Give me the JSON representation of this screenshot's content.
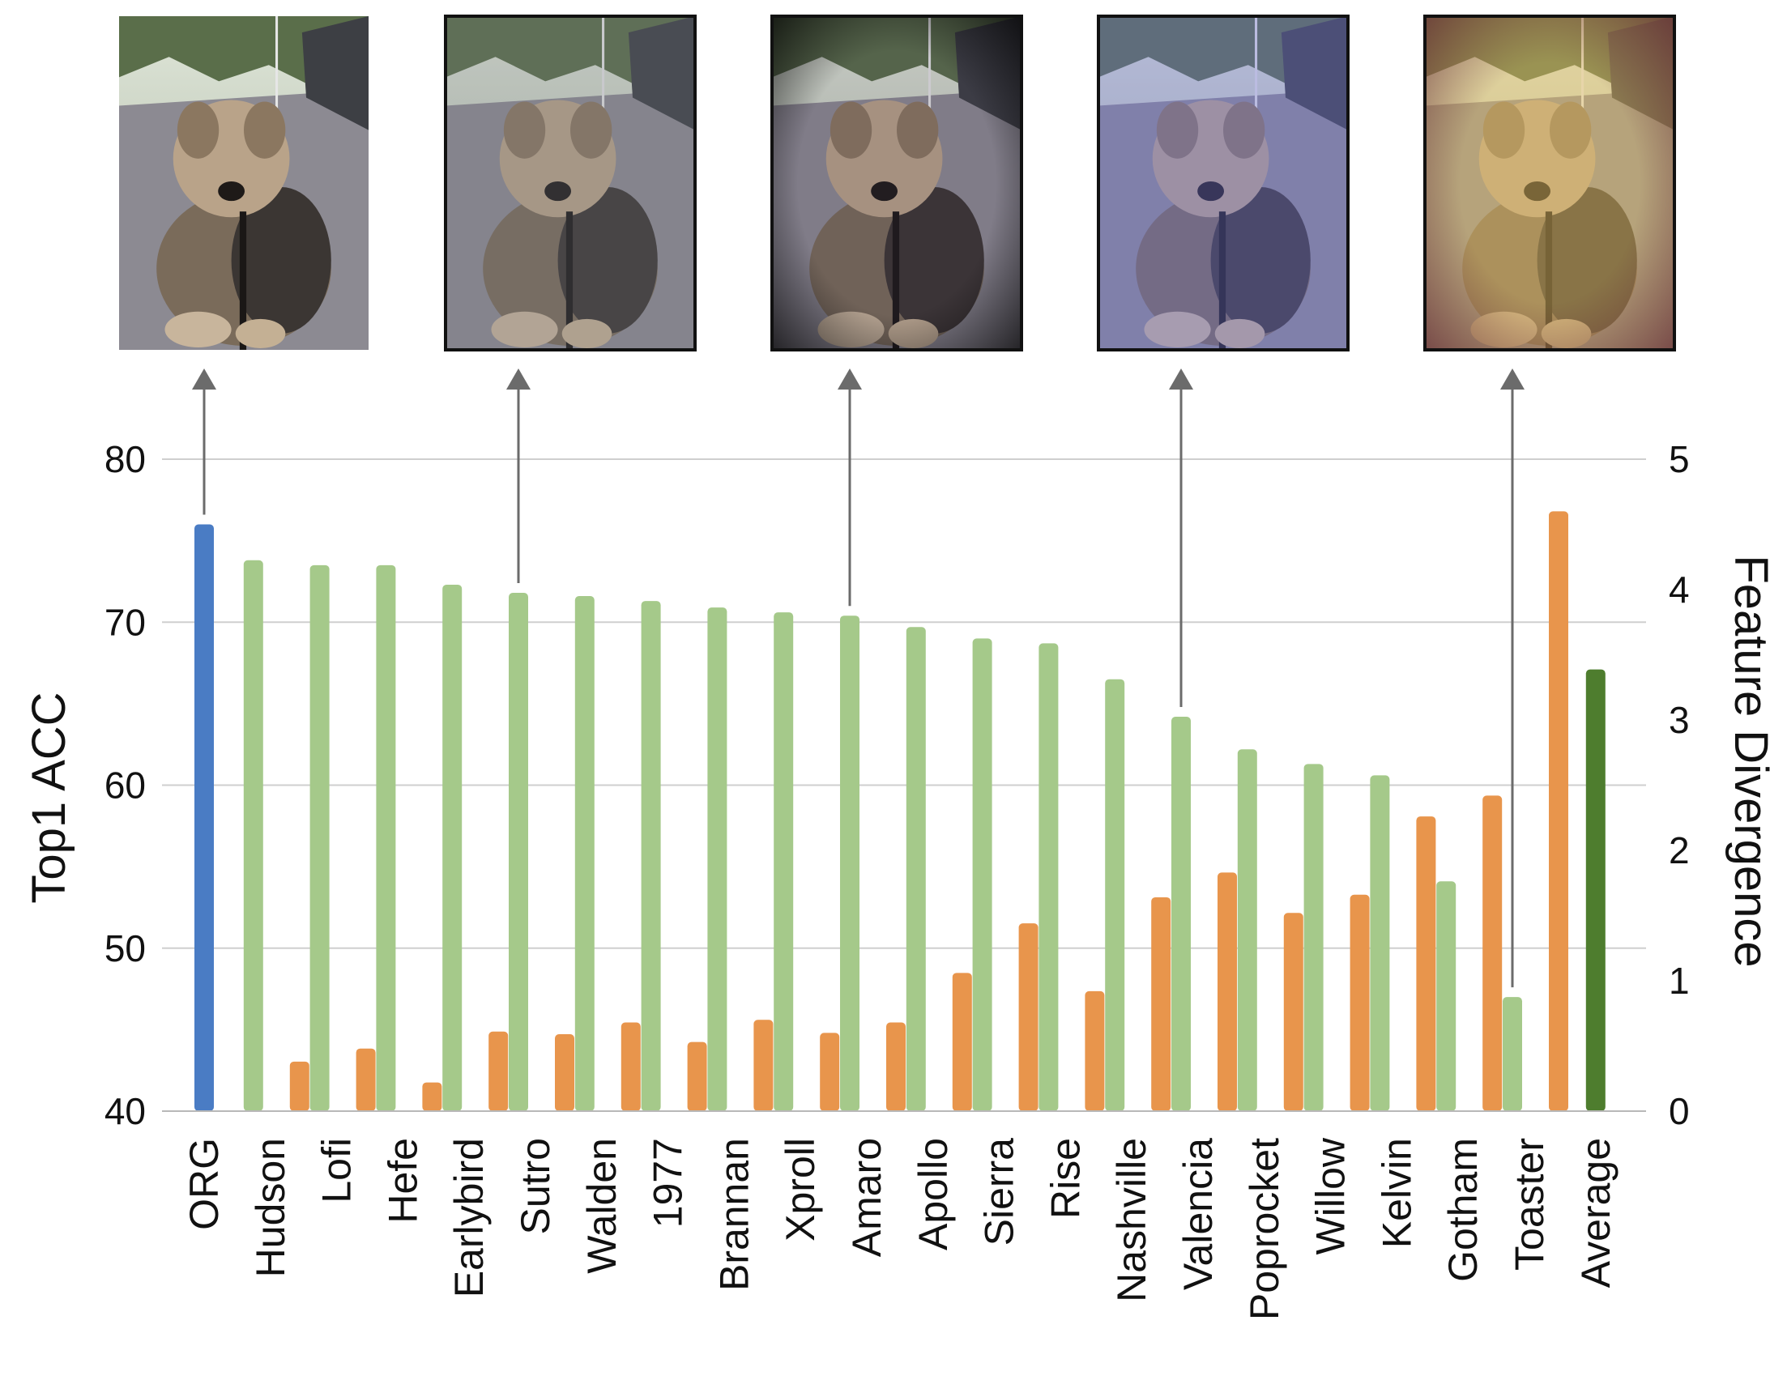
{
  "chart_data": {
    "type": "bar",
    "categories": [
      "ORG",
      "Hudson",
      "Lofi",
      "Hefe",
      "Earlybird",
      "Sutro",
      "Walden",
      "1977",
      "Brannan",
      "Xproll",
      "Amaro",
      "Apollo",
      "Sierra",
      "Rise",
      "Nashville",
      "Valencia",
      "Poprocket",
      "Willow",
      "Kelvin",
      "Gotham",
      "Toaster",
      "Average"
    ],
    "series": [
      {
        "name": "",
        "axis": "left",
        "values": [
          76.0,
          73.8,
          73.5,
          73.5,
          72.3,
          71.8,
          71.6,
          71.3,
          70.9,
          70.6,
          70.4,
          69.7,
          69.0,
          68.7,
          66.5,
          64.2,
          62.2,
          61.3,
          60.6,
          54.1,
          47.0,
          67.1
        ],
        "colors_by_category": {
          "ORG": "#4a7cc4",
          "Average": "#4e7d2e"
        },
        "color": "#a5c98a"
      },
      {
        "name": "",
        "axis": "right",
        "values": [
          null,
          0.38,
          0.48,
          0.22,
          0.61,
          0.59,
          0.68,
          0.53,
          0.7,
          0.6,
          0.68,
          1.06,
          1.44,
          0.92,
          1.64,
          1.83,
          1.52,
          1.66,
          2.26,
          2.42,
          4.6,
          null
        ],
        "color": "#e8954c"
      }
    ],
    "ylabel": "Top1 ACC",
    "ylim": [
      40,
      80
    ],
    "yticks": [
      "40",
      "50",
      "60",
      "70",
      "80"
    ],
    "y2label": "Feature Divergence",
    "y2lim": [
      0,
      5
    ],
    "y2ticks": [
      "0",
      "1",
      "2",
      "3",
      "4",
      "5"
    ],
    "grid": true,
    "legend": "none",
    "thumbnails": [
      {
        "category": "ORG",
        "filter": "none"
      },
      {
        "category": "Sutro",
        "filter": "sutro"
      },
      {
        "category": "Amaro",
        "filter": "amaro"
      },
      {
        "category": "Valencia",
        "filter": "valencia"
      },
      {
        "category": "Toaster",
        "filter": "toaster"
      }
    ],
    "colors": {
      "grid": "#cfcfcf",
      "arrow": "#6b6b6b"
    }
  }
}
